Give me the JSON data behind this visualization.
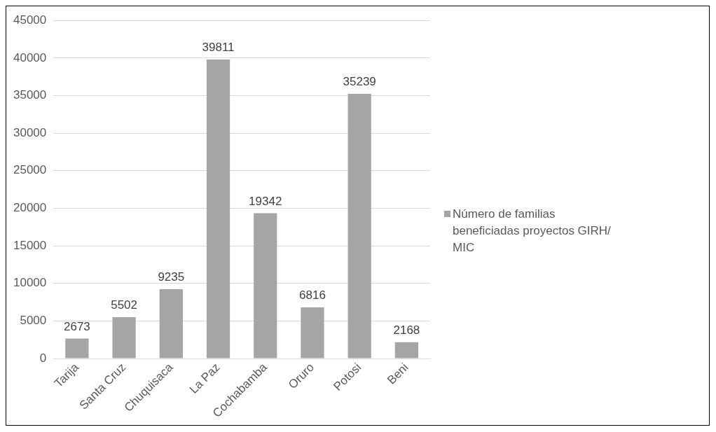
{
  "chart_data": {
    "type": "bar",
    "categories": [
      "Tarija",
      "Santa Cruz",
      "Chuquisaca",
      "La Paz",
      "Cochabamba",
      "Oruro",
      "Potosi",
      "Beni"
    ],
    "series": [
      {
        "name": "Número de familias beneficiadas proyectos GIRH/ MIC",
        "color": "#a5a5a5",
        "values": [
          2673,
          5502,
          9235,
          39811,
          19342,
          6816,
          35239,
          2168
        ]
      }
    ],
    "ylim": [
      0,
      45000
    ],
    "yticks": [
      0,
      5000,
      10000,
      15000,
      20000,
      25000,
      30000,
      35000,
      40000,
      45000
    ],
    "grid": "y",
    "data_labels": true,
    "legend": "right"
  }
}
